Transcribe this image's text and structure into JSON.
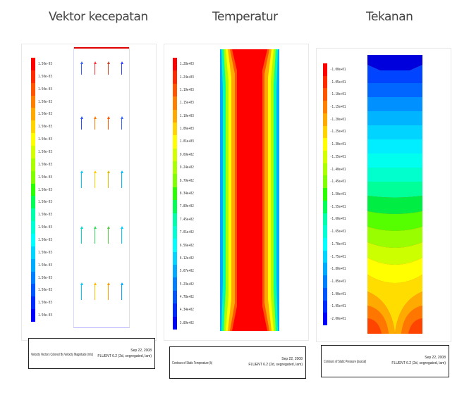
{
  "panels": [
    {
      "title": "Vektor kecepatan",
      "legend_ticks": [
        "1.50e-03",
        "1.50e-03",
        "1.50e-03",
        "1.50e-03",
        "1.50e-03",
        "1.50e-03",
        "1.50e-03",
        "1.50e-03",
        "1.50e-03",
        "1.50e-03",
        "1.50e-03",
        "1.50e-03",
        "1.50e-03",
        "1.50e-03",
        "1.50e-03",
        "1.50e-03",
        "1.50e-03",
        "1.50e-03",
        "1.50e-03",
        "1.50e-03",
        "1.50e-03"
      ],
      "info_caption": "Velocity Vectors Colored By Velocity Magnitude (m/s)",
      "info_date": "Sep 22, 2008",
      "info_version": "FLUENT 6.2 (2d, segregated, lam)"
    },
    {
      "title": "Temperatur",
      "legend_ticks": [
        "1.28e+03",
        "1.24e+03",
        "1.19e+03",
        "1.15e+03",
        "1.10e+03",
        "1.06e+03",
        "1.01e+03",
        "9.69e+02",
        "9.24e+02",
        "8.79e+02",
        "8.34e+02",
        "7.89e+02",
        "7.45e+02",
        "7.01e+02",
        "6.56e+02",
        "6.12e+02",
        "5.67e+02",
        "5.23e+02",
        "4.78e+02",
        "4.34e+02",
        "3.89e+02"
      ],
      "info_caption": "Contours of Static Temperature (k)",
      "info_date": "Sep 22, 2008",
      "info_version": "FLUENT 6.2 (2d, segregated, lam)"
    },
    {
      "title": "Tekanan",
      "legend_ticks": [
        "-1.00e+01",
        "-1.05e+01",
        "-1.10e+01",
        "-1.15e+01",
        "-1.20e+01",
        "-1.25e+01",
        "-1.30e+01",
        "-1.35e+01",
        "-1.40e+01",
        "-1.45e+01",
        "-1.50e+01",
        "-1.55e+01",
        "-1.60e+01",
        "-1.65e+01",
        "-1.70e+01",
        "-1.75e+01",
        "-1.80e+01",
        "-1.85e+01",
        "-1.90e+01",
        "-1.95e+01",
        "-2.00e+01"
      ],
      "info_caption": "Contours of Static Pressure (pascal)",
      "info_date": "Sep 22, 2008",
      "info_version": "FLUENT 6.2 (2d, segregated, lam)"
    }
  ],
  "colors": {
    "scale": [
      "#ff0000",
      "#ff2a00",
      "#ff5500",
      "#ff8000",
      "#ffaa00",
      "#ffd400",
      "#ffff00",
      "#d4ff00",
      "#aaff00",
      "#80ff00",
      "#2aff00",
      "#00ff55",
      "#00ffaa",
      "#00ffd4",
      "#00ffff",
      "#00d4ff",
      "#00aaff",
      "#0080ff",
      "#0055ff",
      "#002aff",
      "#0000ff"
    ]
  }
}
